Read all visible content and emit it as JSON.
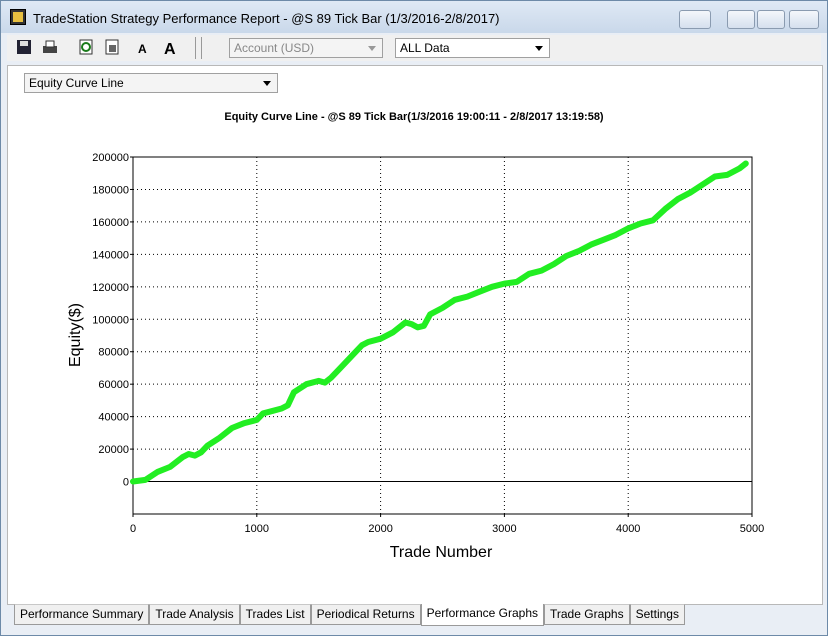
{
  "window": {
    "title": "TradeStation Strategy Performance Report - @S 89 Tick Bar (1/3/2016-2/8/2017)"
  },
  "toolbar": {
    "account_select": "Account (USD)",
    "data_select": "ALL Data"
  },
  "view_select": "Equity Curve Line",
  "tabs": [
    "Performance Summary",
    "Trade Analysis",
    "Trades List",
    "Periodical Returns",
    "Performance Graphs",
    "Trade Graphs",
    "Settings"
  ],
  "active_tab": 4,
  "chart_data": {
    "type": "line",
    "title": "Equity Curve Line - @S 89 Tick Bar(1/3/2016 19:00:11 - 2/8/2017 13:19:58)",
    "x_label": "Trade Number",
    "y_label": "Equity($)",
    "x": [
      0,
      100,
      200,
      300,
      400,
      450,
      500,
      550,
      600,
      700,
      800,
      900,
      1000,
      1050,
      1100,
      1200,
      1250,
      1300,
      1400,
      1500,
      1550,
      1600,
      1700,
      1800,
      1850,
      1900,
      2000,
      2100,
      2200,
      2250,
      2300,
      2350,
      2400,
      2500,
      2600,
      2700,
      2800,
      2900,
      3000,
      3100,
      3200,
      3300,
      3400,
      3500,
      3600,
      3700,
      3800,
      3900,
      4000,
      4100,
      4200,
      4300,
      4400,
      4500,
      4600,
      4700,
      4800,
      4900,
      4950
    ],
    "values": [
      0,
      1000,
      6000,
      9000,
      15000,
      17000,
      16000,
      18000,
      22000,
      27000,
      33000,
      36000,
      38000,
      42000,
      43000,
      45000,
      47000,
      55000,
      60000,
      62000,
      61000,
      64000,
      72000,
      80000,
      84000,
      86000,
      88000,
      92000,
      98000,
      97000,
      95000,
      96000,
      103000,
      107000,
      112000,
      114000,
      117000,
      120000,
      122000,
      123000,
      128000,
      130000,
      134000,
      139000,
      142000,
      146000,
      149000,
      152000,
      156000,
      159000,
      161000,
      168000,
      174000,
      178000,
      183000,
      188000,
      189000,
      193000,
      196000
    ],
    "color": "#22ee22",
    "xlim": [
      0,
      5000
    ],
    "xticks": [
      0,
      1000,
      2000,
      3000,
      4000,
      5000
    ],
    "ylim": [
      -20000,
      200000
    ],
    "yticks": [
      0,
      20000,
      40000,
      60000,
      80000,
      100000,
      120000,
      140000,
      160000,
      180000,
      200000
    ],
    "grid": true
  }
}
